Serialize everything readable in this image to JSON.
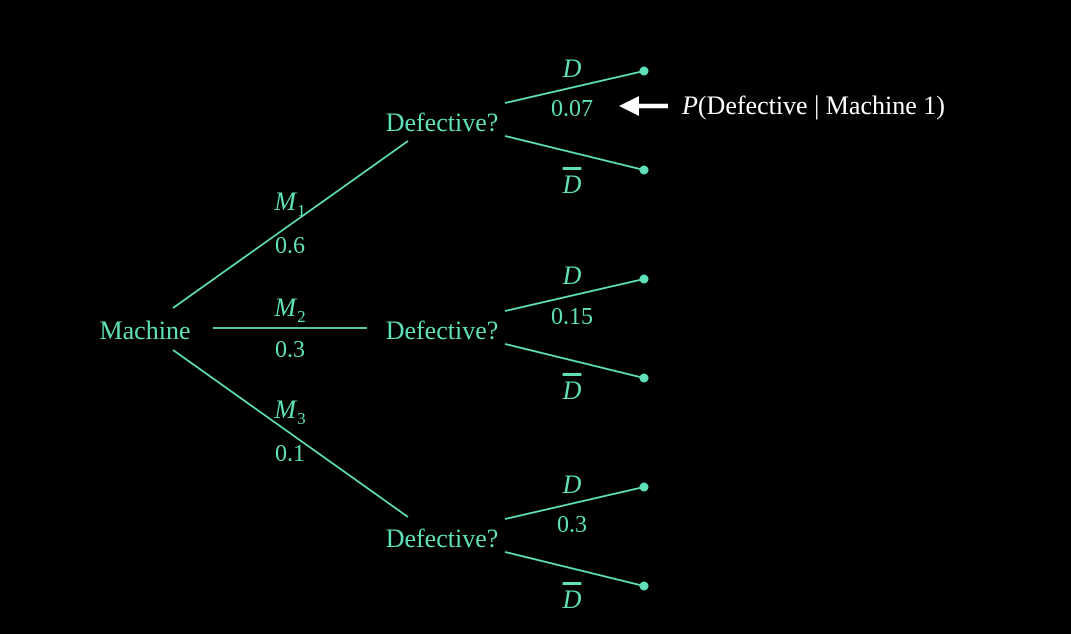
{
  "colors": {
    "background": "#000000",
    "tree": "#5fe0b8",
    "annotation": "#ffffff"
  },
  "root": {
    "label": "Machine"
  },
  "machines": [
    {
      "letter": "M",
      "sub": "1",
      "prob": "0.6",
      "node_label": "Defective?",
      "leaves": [
        {
          "label": "D",
          "prob": "0.07"
        },
        {
          "label": "D",
          "complement": true
        }
      ]
    },
    {
      "letter": "M",
      "sub": "2",
      "prob": "0.3",
      "node_label": "Defective?",
      "leaves": [
        {
          "label": "D",
          "prob": "0.15"
        },
        {
          "label": "D",
          "complement": true
        }
      ]
    },
    {
      "letter": "M",
      "sub": "3",
      "prob": "0.1",
      "node_label": "Defective?",
      "leaves": [
        {
          "label": "D",
          "prob": "0.3"
        },
        {
          "label": "D",
          "complement": true
        }
      ]
    }
  ],
  "annotation": {
    "p": "P",
    "text": "(Defective | Machine 1)",
    "arrow_icon": "left-arrow-icon"
  }
}
